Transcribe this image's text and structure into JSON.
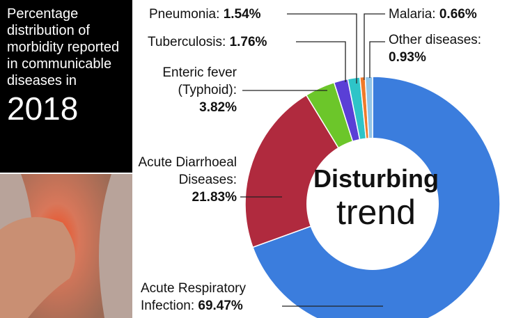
{
  "left_panel": {
    "title": "Percentage distribution of morbidity reported in communicable diseases in",
    "year": "2018"
  },
  "chart_data": {
    "type": "donut",
    "center_text": [
      "Disturbing",
      "trend"
    ],
    "categories": [
      "Acute Respiratory Infection:",
      "Acute Diarrhoeal Diseases:",
      "Enteric fever (Typhoid):",
      "Tuberculosis:",
      "Pneumonia:",
      "Malaria:",
      "Other diseases:"
    ],
    "values": [
      69.47,
      21.83,
      3.82,
      1.76,
      1.54,
      0.66,
      0.93
    ],
    "value_labels": [
      "69.47%",
      "21.83%",
      "3.82%",
      "1.76%",
      "1.54%",
      "0.66%",
      "0.93%"
    ],
    "colors": [
      "#3b7ddd",
      "#b02a3e",
      "#6cc62a",
      "#5a3fd6",
      "#2ec4c8",
      "#f07a2a",
      "#93c5e8"
    ]
  }
}
